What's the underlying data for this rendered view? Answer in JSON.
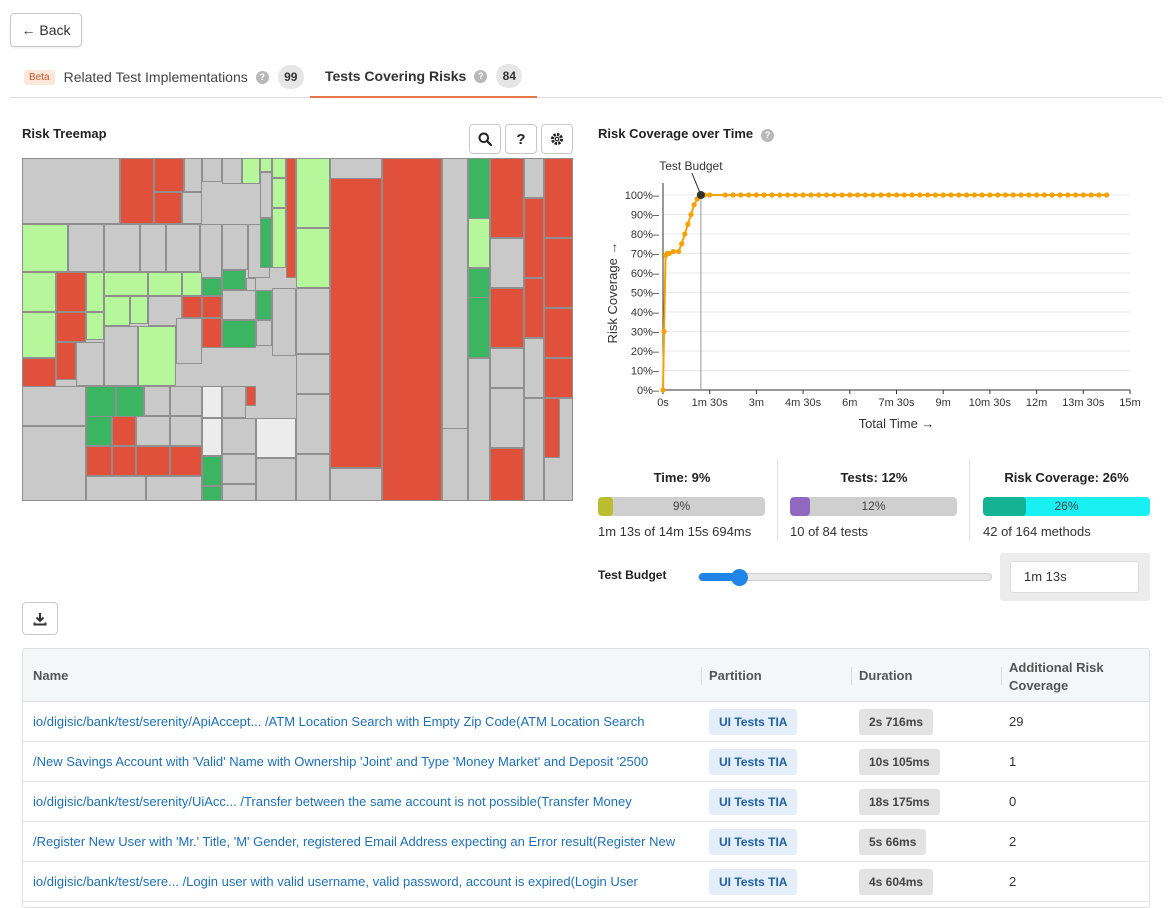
{
  "nav": {
    "back_label": "← Back"
  },
  "tabs": [
    {
      "badge": "Beta",
      "label": "Related Test Implementations",
      "count": "99",
      "active": false
    },
    {
      "badge": "",
      "label": "Tests Covering Risks",
      "count": "84",
      "active": true
    }
  ],
  "treemap": {
    "title": "Risk Treemap",
    "colors": {
      "high_risk": "#e0503a",
      "covered": "#3cb563",
      "light_covered": "#b6f79c",
      "uncovered": "#c9c9c9",
      "selected": "#ececec"
    }
  },
  "coverage_chart": {
    "title": "Risk Coverage over Time",
    "budget_annotation": "Test Budget"
  },
  "chart_data": {
    "type": "line",
    "title": "Risk Coverage over Time",
    "xlabel": "Total Time →",
    "ylabel": "Risk Coverage →",
    "x_unit": "seconds",
    "xlim": [
      0,
      920
    ],
    "ylim": [
      0,
      100
    ],
    "x_tick_labels": [
      "0s",
      "1m 30s",
      "3m",
      "4m 30s",
      "6m",
      "7m 30s",
      "9m",
      "10m 30s",
      "12m",
      "13m 30s",
      "15m"
    ],
    "x_tick_values": [
      0,
      90,
      180,
      270,
      360,
      450,
      540,
      630,
      720,
      810,
      900
    ],
    "y_tick_labels": [
      "0%",
      "10%",
      "20%",
      "30%",
      "40%",
      "50%",
      "60%",
      "70%",
      "80%",
      "90%",
      "100%"
    ],
    "y_tick_values": [
      0,
      10,
      20,
      30,
      40,
      50,
      60,
      70,
      80,
      90,
      100
    ],
    "budget_marker_x": 73,
    "series": [
      {
        "color": "#f5a200",
        "x": [
          0,
          2,
          5,
          8,
          12,
          20,
          30,
          36,
          42,
          48,
          54,
          60,
          66,
          73,
          80,
          90,
          120,
          135,
          150,
          165,
          180,
          195,
          210,
          225,
          240,
          255,
          270,
          285,
          300,
          315,
          330,
          345,
          360,
          375,
          390,
          405,
          420,
          435,
          450,
          465,
          480,
          495,
          510,
          525,
          540,
          555,
          570,
          585,
          600,
          615,
          630,
          645,
          660,
          675,
          690,
          705,
          720,
          735,
          750,
          765,
          780,
          795,
          810,
          825,
          840,
          855
        ],
        "y": [
          0,
          30,
          69,
          70,
          70,
          71,
          71,
          75,
          80,
          85,
          90,
          95,
          98,
          100,
          100,
          100,
          100,
          100,
          100,
          100,
          100,
          100,
          100,
          100,
          100,
          100,
          100,
          100,
          100,
          100,
          100,
          100,
          100,
          100,
          100,
          100,
          100,
          100,
          100,
          100,
          100,
          100,
          100,
          100,
          100,
          100,
          100,
          100,
          100,
          100,
          100,
          100,
          100,
          100,
          100,
          100,
          100,
          100,
          100,
          100,
          100,
          100,
          100,
          100,
          100,
          100
        ]
      }
    ]
  },
  "stats": {
    "time": {
      "label": "Time: 9%",
      "bar_text": "9%",
      "fraction": 0.09,
      "sub": "1m 13s of 14m 15s 694ms",
      "color": "#b9bd2f"
    },
    "tests": {
      "label": "Tests: 12%",
      "bar_text": "12%",
      "fraction": 0.12,
      "sub": "10 of 84 tests",
      "color": "#9168c0"
    },
    "risk": {
      "label": "Risk Coverage: 26%",
      "bar_text": "26%",
      "fraction": 0.26,
      "sub": "42 of 164 methods",
      "color": "#14b394",
      "track_color": "#19f0f4"
    }
  },
  "budget": {
    "label": "Test Budget",
    "value": "1m 13s",
    "fraction": 0.14
  },
  "table": {
    "headers": {
      "name": "Name",
      "partition": "Partition",
      "duration": "Duration",
      "additional_line1": "Additional Risk",
      "additional_line2": "Coverage"
    },
    "rows": [
      {
        "name": "io/digisic/bank/test/serenity/ApiAccept... /ATM Location Search with Empty Zip Code(ATM Location Search",
        "partition": "UI Tests TIA",
        "duration": "2s 716ms",
        "additional": "29"
      },
      {
        "name": "/New Savings Account with 'Valid' Name with Ownership 'Joint' and Type 'Money Market' and Deposit '2500",
        "partition": "UI Tests TIA",
        "duration": "10s 105ms",
        "additional": "1"
      },
      {
        "name": "io/digisic/bank/test/serenity/UiAcc...  /Transfer between the same account is not possible(Transfer Money",
        "partition": "UI Tests TIA",
        "duration": "18s 175ms",
        "additional": "0"
      },
      {
        "name": "/Register New User with 'Mr.' Title, 'M' Gender, registered Email Address expecting an Error result(Register New",
        "partition": "UI Tests TIA",
        "duration": "5s 66ms",
        "additional": "2"
      },
      {
        "name": "io/digisic/bank/test/sere... /Login user with valid username, valid password, account is expired(Login User",
        "partition": "UI Tests TIA",
        "duration": "4s 604ms",
        "additional": "2"
      }
    ]
  }
}
